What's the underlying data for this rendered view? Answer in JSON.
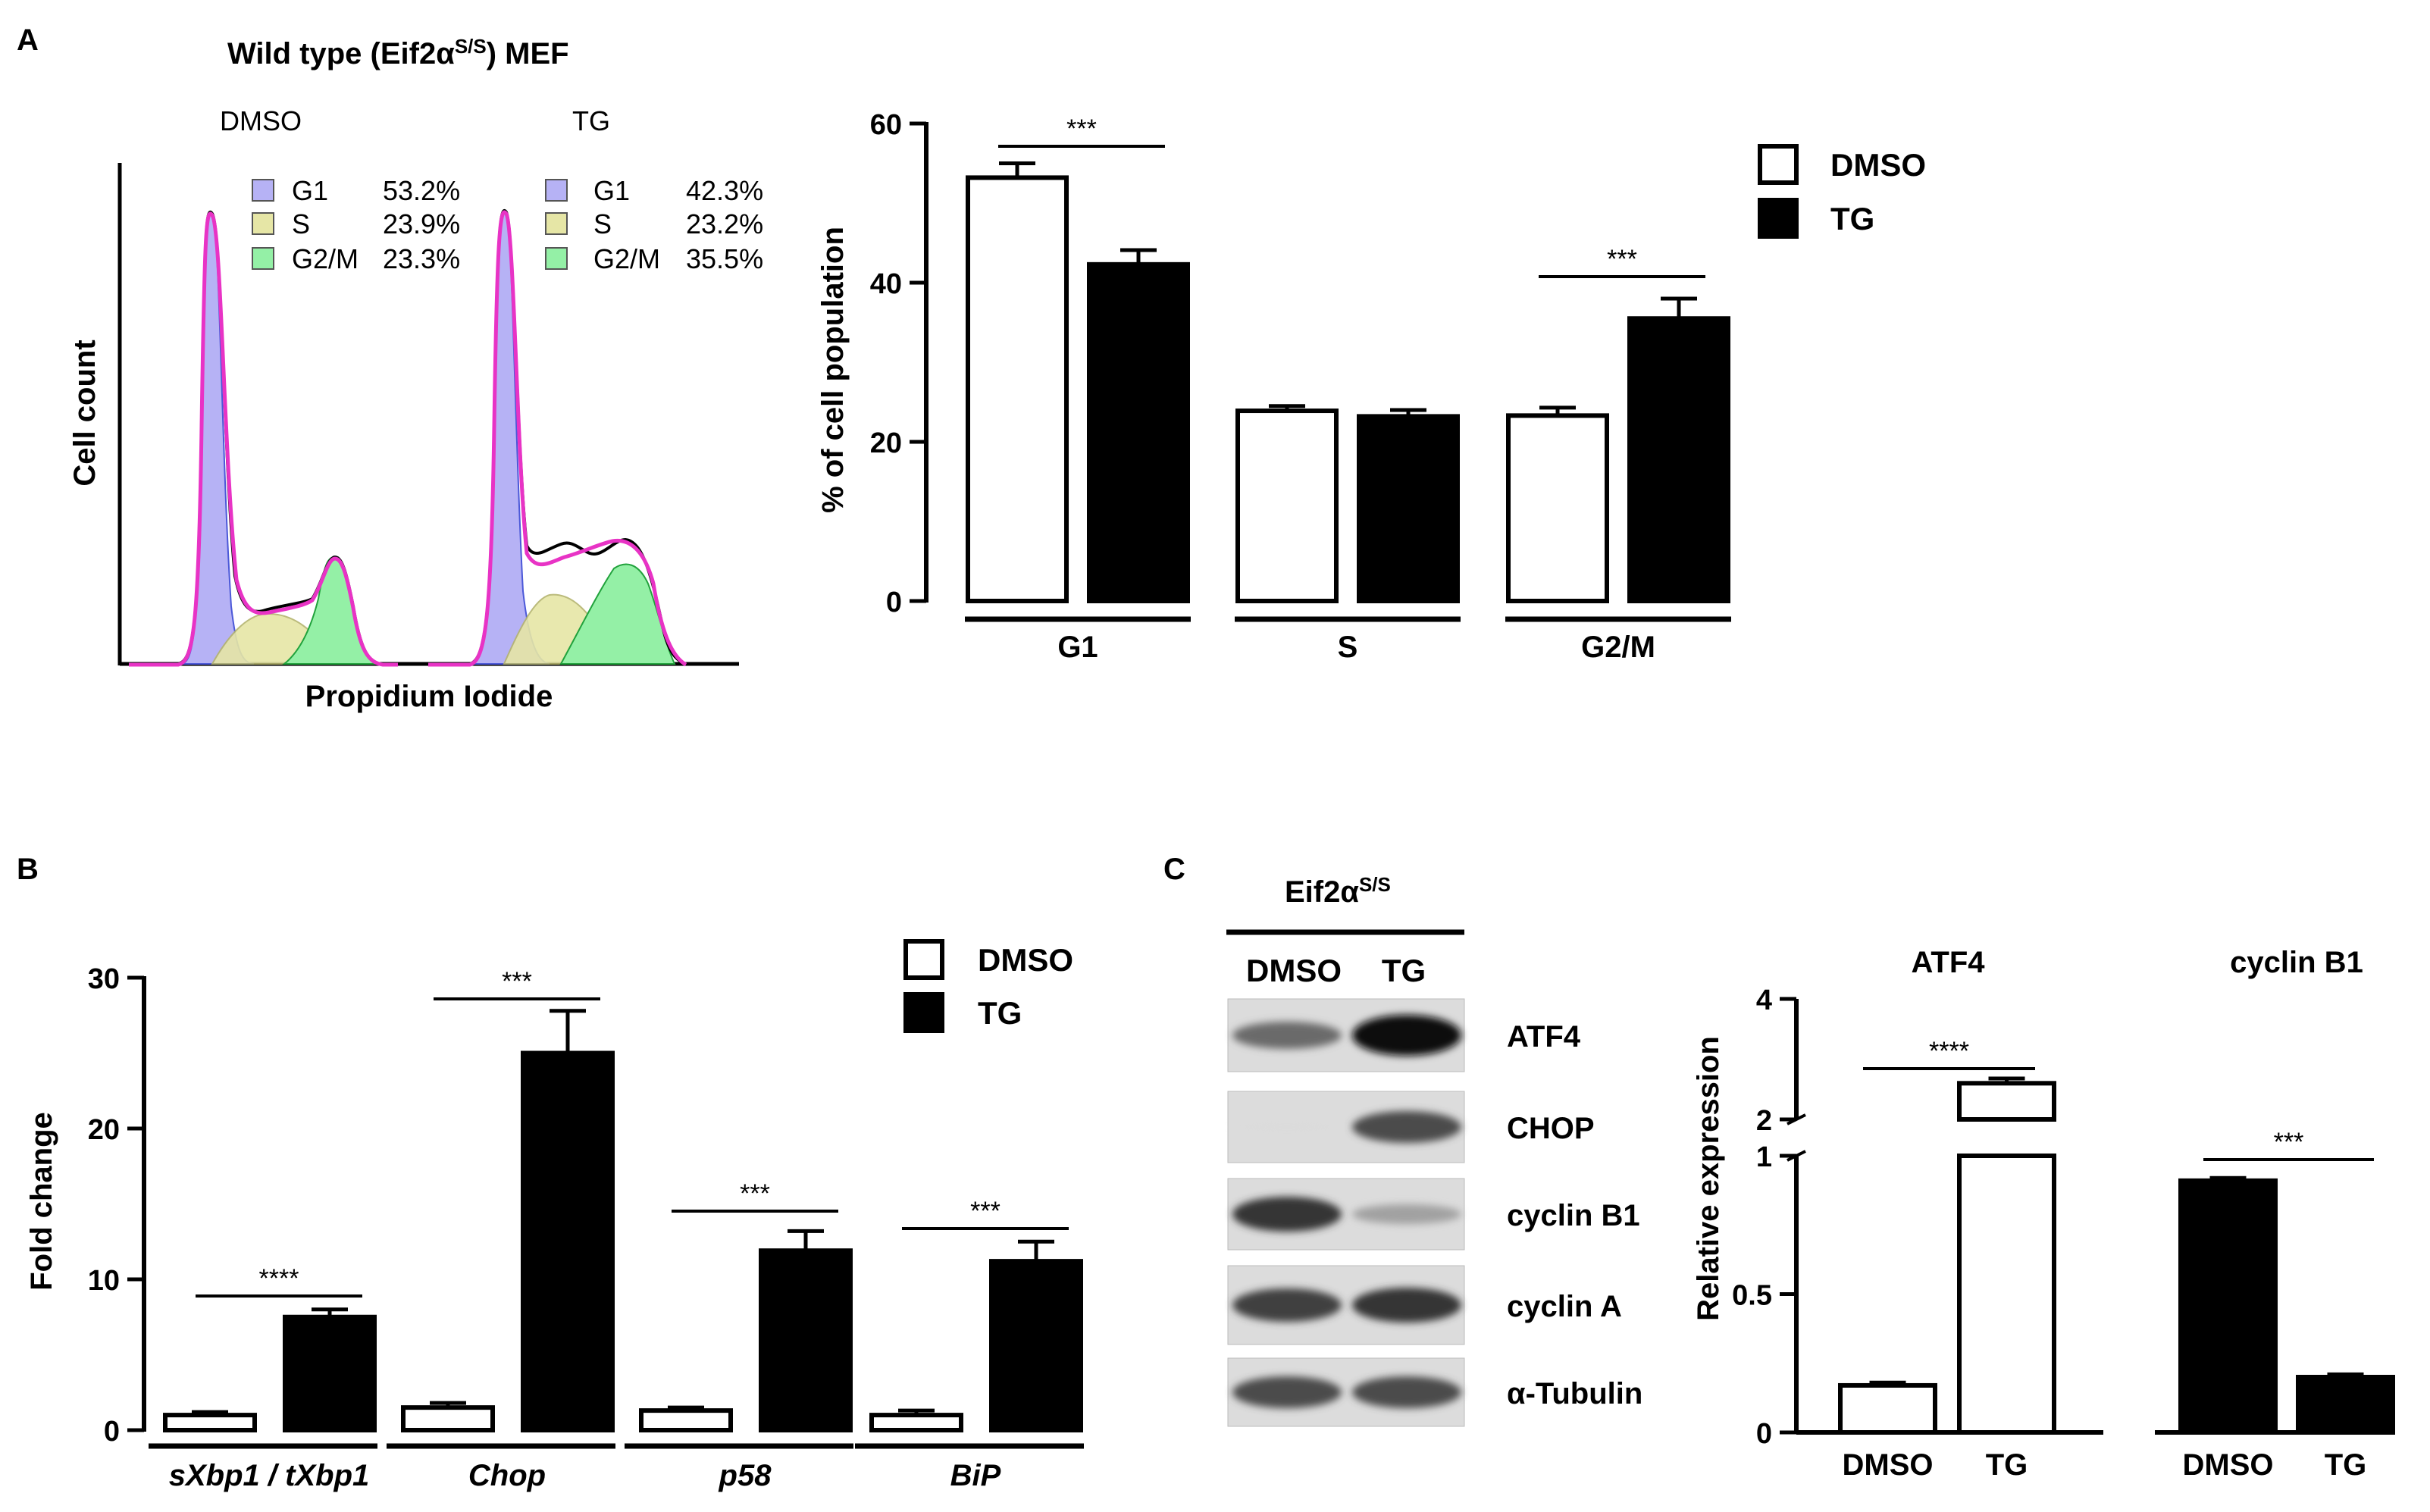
{
  "panels": {
    "A": "A",
    "B": "B",
    "C": "C"
  },
  "flow": {
    "title_pre": "Wild type (Eif2α",
    "title_sup": "S/S",
    "title_post": ") MEF",
    "xlabel": "Propidium Iodide",
    "ylabel": "Cell count",
    "samples": [
      {
        "name": "DMSO",
        "phases": [
          {
            "label": "G1",
            "value": "53.2%"
          },
          {
            "label": "S",
            "value": "23.9%"
          },
          {
            "label": "G2/M",
            "value": "23.3%"
          }
        ]
      },
      {
        "name": "TG",
        "phases": [
          {
            "label": "G1",
            "value": "42.3%"
          },
          {
            "label": "S",
            "value": "23.2%"
          },
          {
            "label": "G2/M",
            "value": "35.5%"
          }
        ]
      }
    ],
    "colors": {
      "G1": "#b6b2f5",
      "S": "#e6e6a6",
      "G2M": "#94f0a6",
      "fit": "#e833c5"
    }
  },
  "chart_data": [
    {
      "type": "bar",
      "title": "",
      "ylabel": "% of cell population",
      "xlabel": "",
      "ylim": [
        0,
        60
      ],
      "yticks": [
        "0",
        "20",
        "40",
        "60"
      ],
      "categories": [
        "G1",
        "S",
        "G2/M"
      ],
      "series": [
        {
          "name": "DMSO",
          "values": [
            53.2,
            23.9,
            23.3
          ],
          "errors": [
            1.8,
            0.6,
            1.0
          ],
          "fill": "#ffffff"
        },
        {
          "name": "TG",
          "values": [
            42.3,
            23.2,
            35.5
          ],
          "errors": [
            1.8,
            0.8,
            2.5
          ],
          "fill": "#000000"
        }
      ],
      "significance": [
        {
          "category": 0,
          "label": "***"
        },
        {
          "category": 2,
          "label": "***"
        }
      ]
    },
    {
      "type": "bar",
      "title": "",
      "ylabel": "Fold change",
      "xlabel": "",
      "ylim": [
        0,
        30
      ],
      "yticks": [
        "0",
        "10",
        "20",
        "30"
      ],
      "categories": [
        "sXbp1 / tXbp1",
        "Chop",
        "p58",
        "BiP"
      ],
      "series": [
        {
          "name": "DMSO",
          "values": [
            1.0,
            1.5,
            1.3,
            1.0
          ],
          "errors": [
            0.2,
            0.3,
            0.2,
            0.3
          ],
          "fill": "#ffffff"
        },
        {
          "name": "TG",
          "values": [
            7.5,
            25,
            11.9,
            11.2
          ],
          "errors": [
            0.5,
            2.8,
            1.3,
            1.3
          ],
          "fill": "#000000"
        }
      ],
      "significance": [
        {
          "category": 0,
          "label": "****"
        },
        {
          "category": 1,
          "label": "***"
        },
        {
          "category": 2,
          "label": "***"
        },
        {
          "category": 3,
          "label": "***"
        }
      ]
    },
    {
      "type": "bar",
      "title": "",
      "ylabel": "Relative expression",
      "xlabel": "",
      "ylim": [
        0,
        4
      ],
      "axis_break": [
        1,
        2
      ],
      "yticks": [
        "0",
        "0.5",
        "1",
        "2",
        "4"
      ],
      "groups": [
        {
          "title": "ATF4",
          "bars": [
            {
              "label": "DMSO",
              "value": 0.17,
              "error": 0.01,
              "fill": "#ffffff"
            },
            {
              "label": "TG",
              "value": 2.6,
              "error": 0.08,
              "fill": "#ffffff"
            }
          ],
          "significance": "****"
        },
        {
          "title": "cyclin B1",
          "bars": [
            {
              "label": "DMSO",
              "value": 0.91,
              "error": 0.01,
              "fill": "#000000"
            },
            {
              "label": "TG",
              "value": 0.2,
              "error": 0.01,
              "fill": "#000000"
            }
          ],
          "significance": "***"
        }
      ]
    }
  ],
  "legends": {
    "dmso": "DMSO",
    "tg": "TG"
  },
  "western": {
    "header_pre": "Eif2α",
    "header_sup": "S/S",
    "lanes": [
      "DMSO",
      "TG"
    ],
    "rows": [
      {
        "label": "ATF4",
        "band_intensity": [
          0.55,
          1.0
        ]
      },
      {
        "label": "CHOP",
        "band_intensity": [
          0.03,
          0.7
        ]
      },
      {
        "label": "cyclin B1",
        "band_intensity": [
          0.8,
          0.3
        ]
      },
      {
        "label": "cyclin A",
        "band_intensity": [
          0.75,
          0.8
        ]
      },
      {
        "label": "α-Tubulin",
        "band_intensity": [
          0.7,
          0.7
        ]
      }
    ]
  }
}
